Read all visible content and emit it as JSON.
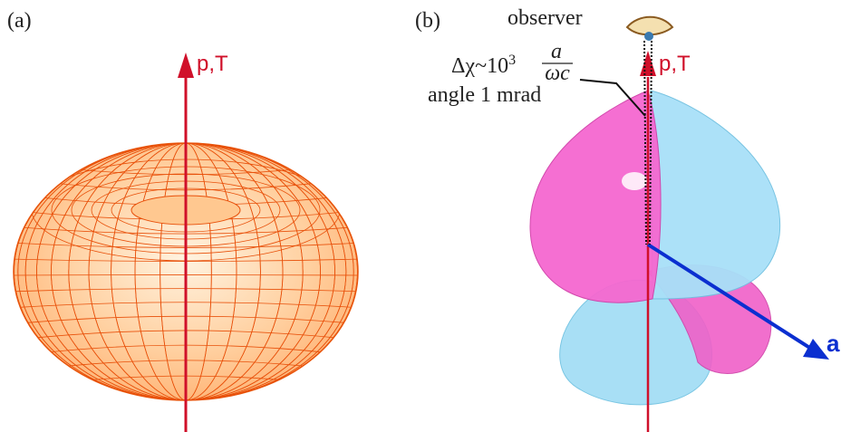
{
  "panels": [
    {
      "label": "(a)",
      "axis_label": "p,T"
    },
    {
      "label": "(b)",
      "axis_label": "p,T",
      "observer": "observer",
      "annotation": {
        "prefix": "Δχ~10",
        "exponent": "3",
        "numerator": "a",
        "denominator": "ωc",
        "angle": "angle 1 mrad"
      },
      "vector_label": "a"
    }
  ]
}
